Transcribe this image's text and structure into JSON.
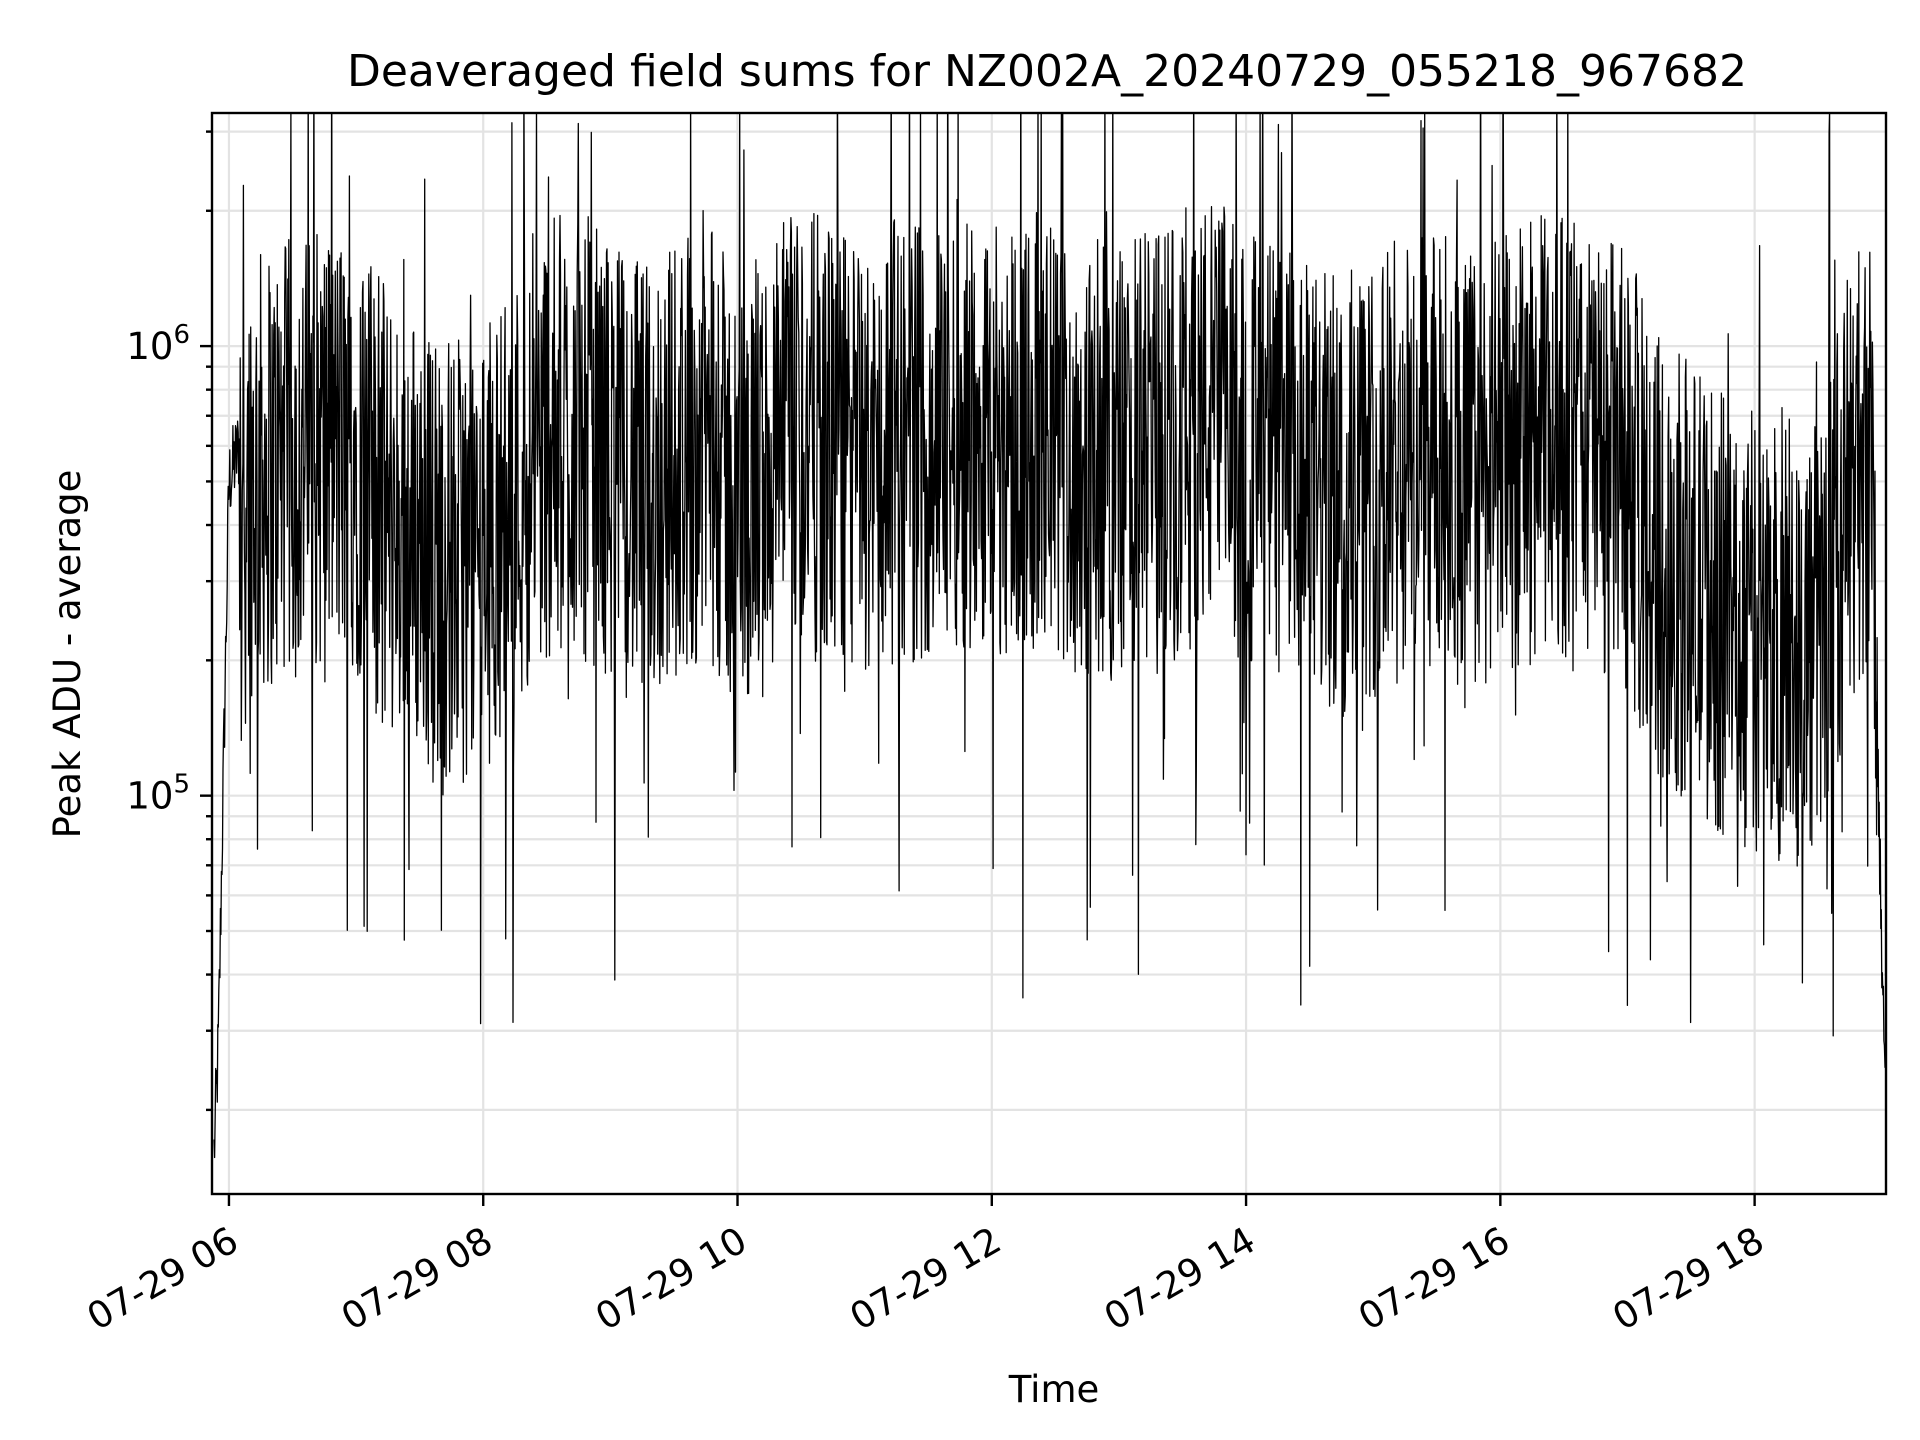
{
  "chart_data": {
    "type": "line",
    "title": "Deaveraged field sums for NZ002A_20240729_055218_967682",
    "xlabel": "Time",
    "ylabel": "Peak ADU - average",
    "x_scale": "time",
    "y_scale": "log",
    "xlim": [
      "2024-07-29 05:52",
      "2024-07-29 19:02"
    ],
    "ylim": [
      13000,
      3300000
    ],
    "grid": true,
    "x_ticks": [
      {
        "t": "2024-07-29 06:00",
        "label": "07-29 06"
      },
      {
        "t": "2024-07-29 08:00",
        "label": "07-29 08"
      },
      {
        "t": "2024-07-29 10:00",
        "label": "07-29 10"
      },
      {
        "t": "2024-07-29 12:00",
        "label": "07-29 12"
      },
      {
        "t": "2024-07-29 14:00",
        "label": "07-29 14"
      },
      {
        "t": "2024-07-29 16:00",
        "label": "07-29 16"
      },
      {
        "t": "2024-07-29 18:00",
        "label": "07-29 18"
      }
    ],
    "y_ticks": [
      {
        "value": 100000,
        "base": "10",
        "exp": "5"
      },
      {
        "value": 1000000,
        "base": "10",
        "exp": "6"
      }
    ],
    "series": [
      {
        "color": "#000000",
        "x": [
          "2024-07-29 05:53",
          "2024-07-29 05:55",
          "2024-07-29 05:57",
          "2024-07-29 06:00",
          "2024-07-29 06:05",
          "2024-07-29 06:10",
          "2024-07-29 06:20",
          "2024-07-29 06:30",
          "2024-07-29 06:45",
          "2024-07-29 07:00",
          "2024-07-29 07:15",
          "2024-07-29 07:30",
          "2024-07-29 07:45",
          "2024-07-29 08:00",
          "2024-07-29 08:15",
          "2024-07-29 08:30",
          "2024-07-29 08:45",
          "2024-07-29 09:00",
          "2024-07-29 09:15",
          "2024-07-29 09:30",
          "2024-07-29 09:45",
          "2024-07-29 10:00",
          "2024-07-29 10:15",
          "2024-07-29 10:30",
          "2024-07-29 10:45",
          "2024-07-29 11:00",
          "2024-07-29 11:15",
          "2024-07-29 11:30",
          "2024-07-29 11:45",
          "2024-07-29 12:00",
          "2024-07-29 12:15",
          "2024-07-29 12:30",
          "2024-07-29 12:45",
          "2024-07-29 13:00",
          "2024-07-29 13:15",
          "2024-07-29 13:30",
          "2024-07-29 13:45",
          "2024-07-29 14:00",
          "2024-07-29 14:15",
          "2024-07-29 14:30",
          "2024-07-29 14:45",
          "2024-07-29 15:00",
          "2024-07-29 15:15",
          "2024-07-29 15:30",
          "2024-07-29 15:45",
          "2024-07-29 16:00",
          "2024-07-29 16:15",
          "2024-07-29 16:30",
          "2024-07-29 16:45",
          "2024-07-29 17:00",
          "2024-07-29 17:15",
          "2024-07-29 17:30",
          "2024-07-29 17:45",
          "2024-07-29 18:00",
          "2024-07-29 18:15",
          "2024-07-29 18:30",
          "2024-07-29 18:45",
          "2024-07-29 18:55",
          "2024-07-29 19:00",
          "2024-07-29 19:02"
        ],
        "y": [
          16000,
          28000,
          90000,
          500000,
          600000,
          520000,
          530000,
          560000,
          600000,
          580000,
          420000,
          380000,
          330000,
          350000,
          470000,
          620000,
          650000,
          560000,
          480000,
          560000,
          640000,
          440000,
          560000,
          650000,
          600000,
          540000,
          620000,
          620000,
          680000,
          650000,
          650000,
          600000,
          560000,
          560000,
          570000,
          650000,
          700000,
          600000,
          560000,
          480000,
          460000,
          520000,
          560000,
          580000,
          540000,
          560000,
          620000,
          640000,
          600000,
          520000,
          330000,
          300000,
          250000,
          230000,
          220000,
          220000,
          500000,
          600000,
          45000,
          20000
        ]
      }
    ]
  }
}
